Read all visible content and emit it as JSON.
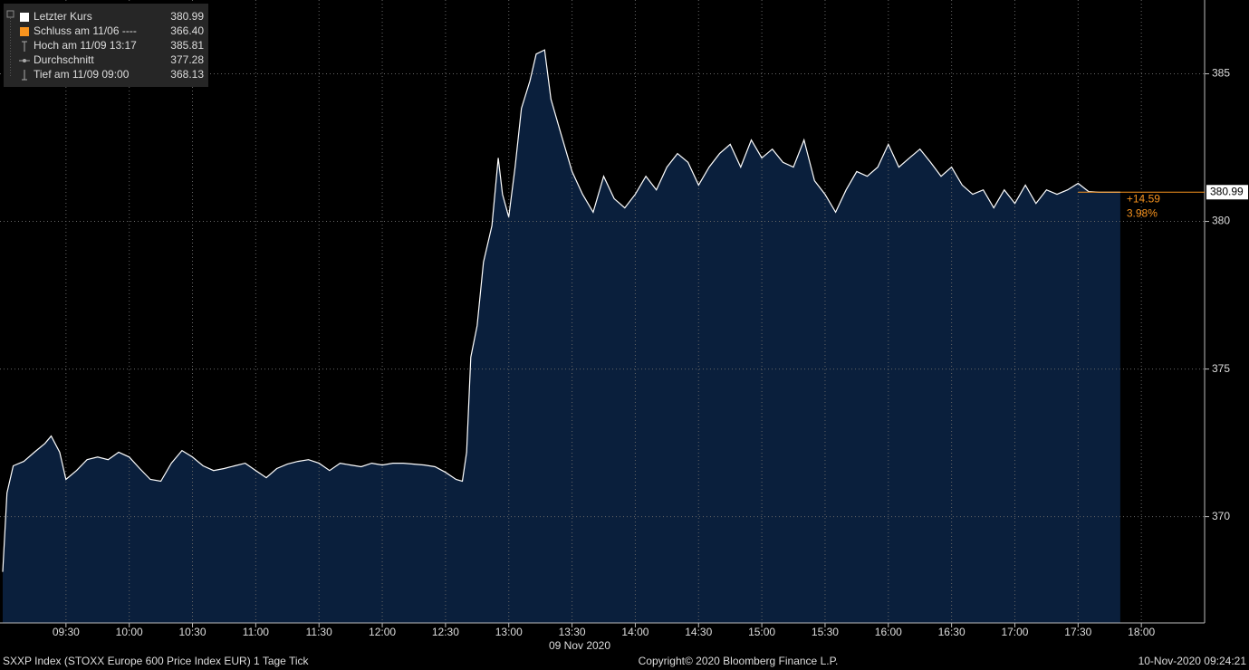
{
  "legend": [
    {
      "label": "Letzter Kurs",
      "value": "380.99"
    },
    {
      "label": "Schluss am 11/06 ----",
      "value": "366.40"
    },
    {
      "label": "Hoch am 11/09 13:17",
      "value": "385.81"
    },
    {
      "label": "Durchschnitt",
      "value": "377.28"
    },
    {
      "label": "Tief am 11/09 09:00",
      "value": "368.13"
    }
  ],
  "chart_data": {
    "type": "area",
    "x_label": "09 Nov 2020",
    "x": [
      "09:00",
      "09:02",
      "09:05",
      "09:10",
      "09:15",
      "09:20",
      "09:23",
      "09:27",
      "09:30",
      "09:35",
      "09:40",
      "09:45",
      "09:50",
      "09:55",
      "10:00",
      "10:05",
      "10:10",
      "10:15",
      "10:20",
      "10:25",
      "10:30",
      "10:35",
      "10:40",
      "10:45",
      "10:50",
      "10:55",
      "11:00",
      "11:05",
      "11:10",
      "11:15",
      "11:20",
      "11:25",
      "11:30",
      "11:35",
      "11:40",
      "11:45",
      "11:50",
      "11:55",
      "12:00",
      "12:05",
      "12:10",
      "12:15",
      "12:20",
      "12:25",
      "12:30",
      "12:35",
      "12:38",
      "12:40",
      "12:42",
      "12:45",
      "12:48",
      "12:52",
      "12:55",
      "12:57",
      "13:00",
      "13:03",
      "13:06",
      "13:10",
      "13:13",
      "13:17",
      "13:20",
      "13:25",
      "13:30",
      "13:35",
      "13:40",
      "13:45",
      "13:50",
      "13:55",
      "14:00",
      "14:05",
      "14:10",
      "14:15",
      "14:20",
      "14:25",
      "14:30",
      "14:35",
      "14:40",
      "14:45",
      "14:50",
      "14:55",
      "15:00",
      "15:05",
      "15:10",
      "15:15",
      "15:20",
      "15:25",
      "15:30",
      "15:35",
      "15:40",
      "15:45",
      "15:50",
      "15:55",
      "16:00",
      "16:05",
      "16:10",
      "16:15",
      "16:20",
      "16:25",
      "16:30",
      "16:35",
      "16:40",
      "16:45",
      "16:50",
      "16:55",
      "17:00",
      "17:05",
      "17:10",
      "17:15",
      "17:20",
      "17:25",
      "17:30",
      "17:35",
      "17:40",
      "17:50"
    ],
    "values": [
      368.13,
      370.8,
      371.72,
      371.87,
      372.18,
      372.48,
      372.73,
      372.18,
      371.26,
      371.56,
      371.93,
      372.02,
      371.93,
      372.18,
      372.02,
      371.63,
      371.26,
      371.2,
      371.81,
      372.24,
      372.02,
      371.72,
      371.56,
      371.63,
      371.72,
      371.81,
      371.56,
      371.32,
      371.63,
      371.78,
      371.87,
      371.93,
      371.81,
      371.56,
      371.81,
      371.75,
      371.69,
      371.81,
      371.75,
      371.81,
      371.81,
      371.78,
      371.75,
      371.69,
      371.5,
      371.26,
      371.2,
      372.18,
      375.4,
      376.47,
      378.62,
      379.85,
      382.15,
      380.92,
      380.15,
      381.84,
      383.83,
      384.75,
      385.67,
      385.81,
      384.14,
      382.91,
      381.69,
      380.92,
      380.31,
      381.53,
      380.77,
      380.46,
      380.92,
      381.53,
      381.07,
      381.84,
      382.3,
      382.0,
      381.23,
      381.84,
      382.3,
      382.61,
      381.84,
      382.76,
      382.15,
      382.45,
      382.0,
      381.84,
      382.76,
      381.38,
      380.92,
      380.31,
      381.07,
      381.69,
      381.53,
      381.84,
      382.61,
      381.84,
      382.15,
      382.45,
      382.0,
      381.53,
      381.84,
      381.23,
      380.92,
      381.07,
      380.46,
      381.07,
      380.61,
      381.23,
      380.61,
      381.07,
      380.92,
      381.07,
      381.29,
      381.01,
      380.99,
      380.99
    ],
    "line_color": "#ffffff",
    "fill_color": "#0a1f3c",
    "last_value": {
      "value": 380.99,
      "label": "380.99"
    },
    "change": "+14.59",
    "change_pct": "3.98%",
    "change_color": "#f7931e",
    "xlim": [
      "09:00",
      "18:30"
    ],
    "xticks": [
      "09:30",
      "10:00",
      "10:30",
      "11:00",
      "11:30",
      "12:00",
      "12:30",
      "13:00",
      "13:30",
      "14:00",
      "14:30",
      "15:00",
      "15:30",
      "16:00",
      "16:30",
      "17:00",
      "17:30",
      "18:00"
    ],
    "ylim": [
      366.4,
      387.5
    ],
    "yticks": [
      370,
      375,
      380,
      385
    ],
    "grid": true
  },
  "footer": {
    "left": "SXXP Index (STOXX Europe 600 Price Index EUR) 1 Tage  Tick",
    "center": "Copyright© 2020 Bloomberg Finance L.P.",
    "right": "10-Nov-2020 09:24:21"
  }
}
